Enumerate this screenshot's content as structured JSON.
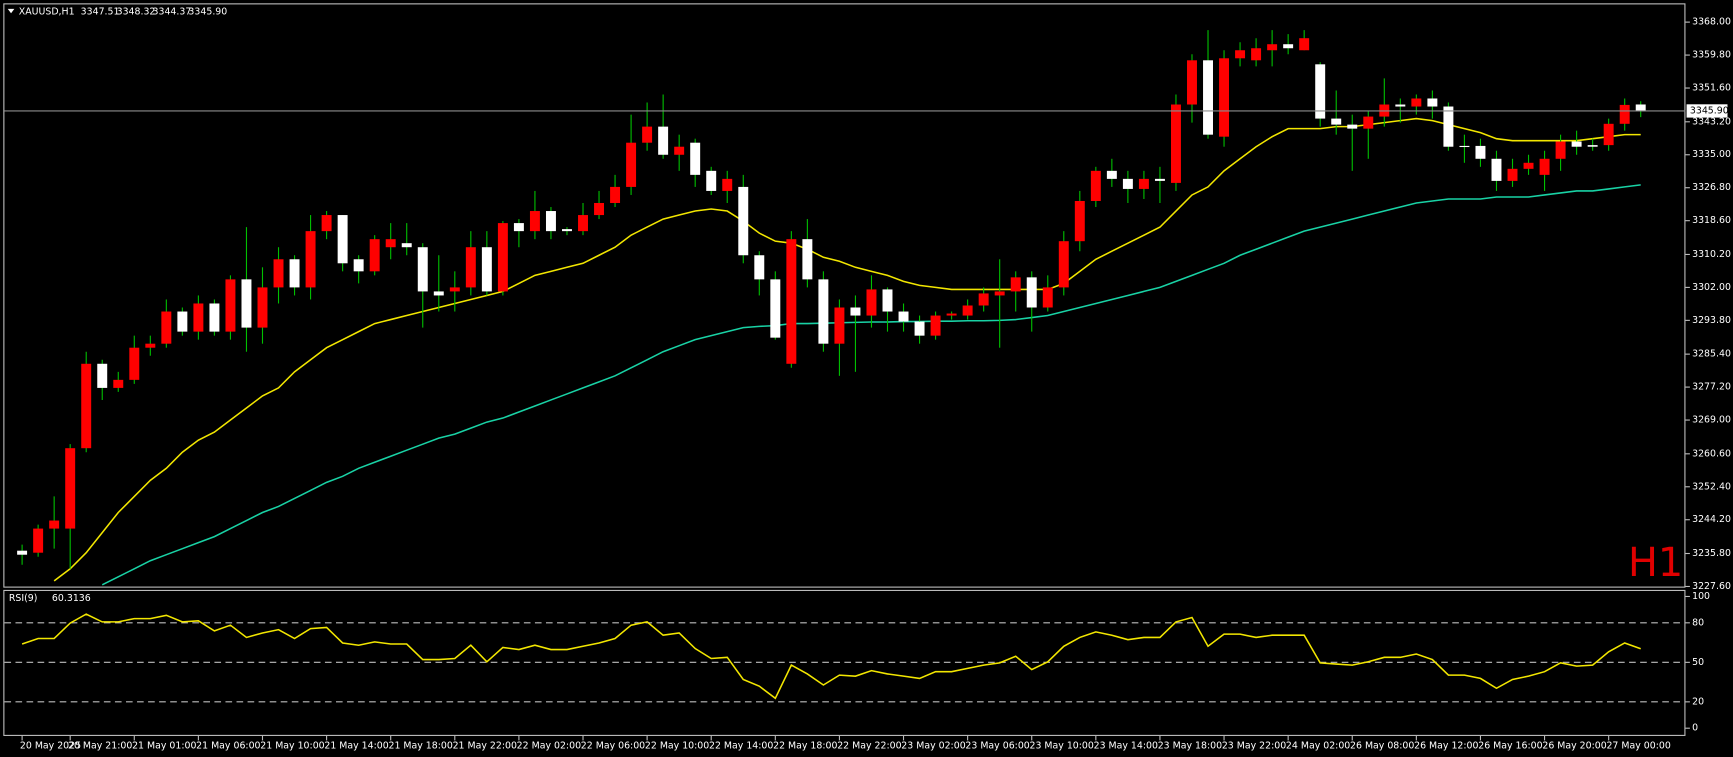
{
  "chart_data": [
    {
      "type": "candlestick",
      "title": "XAUUSD,H1",
      "title_values": [
        "3347.51",
        "3348.32",
        "3344.37",
        "3345.90"
      ],
      "watermark": "H1",
      "categories": [
        "20 May 2025",
        null,
        null,
        "20 May 21:00",
        null,
        null,
        null,
        "21 May 01:00",
        null,
        null,
        null,
        "21 May 06:00",
        null,
        null,
        null,
        "21 May 10:00",
        null,
        null,
        null,
        "21 May 14:00",
        null,
        null,
        null,
        "21 May 18:00",
        null,
        null,
        null,
        "21 May 22:00",
        null,
        null,
        null,
        "22 May 02:00",
        null,
        null,
        null,
        "22 May 06:00",
        null,
        null,
        null,
        "22 May 10:00",
        null,
        null,
        null,
        "22 May 14:00",
        null,
        null,
        null,
        "22 May 18:00",
        null,
        null,
        null,
        "22 May 22:00",
        null,
        null,
        null,
        "23 May 02:00",
        null,
        null,
        null,
        "23 May 06:00",
        null,
        null,
        null,
        "23 May 10:00",
        null,
        null,
        null,
        "23 May 14:00",
        null,
        null,
        null,
        "23 May 18:00",
        null,
        null,
        null,
        "23 May 22:00",
        null,
        null,
        null,
        "24 May 02:00",
        null,
        null,
        null,
        "26 May 08:00",
        null,
        null,
        null,
        "26 May 12:00",
        null,
        null,
        null,
        "26 May 16:00",
        null,
        null,
        null,
        "26 May 20:00",
        null,
        null,
        null,
        "27 May 00:00",
        null,
        null
      ],
      "open": [
        3236.5,
        3236,
        3242,
        3242,
        3262,
        3283,
        3277,
        3279,
        3287,
        3288,
        3296,
        3291,
        3298,
        3291,
        3304,
        3292,
        3302,
        3309,
        3302,
        3316,
        3320,
        3309,
        3306,
        3312,
        3313,
        3312,
        3301,
        3301,
        3302,
        3312,
        3301,
        3318,
        3316,
        3321,
        3316.5,
        3316,
        3320,
        3323,
        3327,
        3338,
        3342,
        3335,
        3338,
        3331,
        3326,
        3327,
        3310,
        3304,
        3283,
        3314,
        3304,
        3288,
        3297,
        3295,
        3301.5,
        3296,
        3293.5,
        3290,
        3295,
        3295,
        3297.5,
        3300,
        3301,
        3304.5,
        3297,
        3302,
        3313.5,
        3323.5,
        3331,
        3329,
        3326.5,
        3329,
        3328,
        3347.5,
        3358.5,
        3339.5,
        3359,
        3358.5,
        3361,
        3362.5,
        3361,
        3357.5,
        3344,
        3342.5,
        3341.5,
        3344.5,
        3347.5,
        3347,
        3349,
        3347,
        3337.2,
        3337.2,
        3334,
        3328.5,
        3331.5,
        3330,
        3334,
        3338.3,
        3337.4,
        3337.4,
        3342.7,
        3347.51
      ],
      "high": [
        3238,
        3243,
        3250,
        3263,
        3286,
        3284,
        3281,
        3290,
        3290,
        3299,
        3297,
        3300,
        3299,
        3305,
        3317,
        3307,
        3312,
        3310,
        3320,
        3321,
        3320,
        3310,
        3315,
        3318,
        3318,
        3313,
        3310,
        3306,
        3316,
        3316,
        3318.5,
        3319,
        3326,
        3322,
        3317,
        3323,
        3326,
        3330,
        3345,
        3348,
        3350,
        3340,
        3339,
        3332,
        3331,
        3330,
        3311,
        3306,
        3316,
        3319,
        3306,
        3299,
        3300,
        3305,
        3302,
        3298,
        3295,
        3296,
        3296,
        3299,
        3302,
        3309,
        3306,
        3306,
        3305,
        3316,
        3326,
        3332,
        3334,
        3331,
        3331,
        3332,
        3350,
        3360,
        3366,
        3361,
        3363,
        3364,
        3366,
        3365,
        3366,
        3358,
        3351,
        3345,
        3346,
        3354,
        3349,
        3350,
        3351,
        3348,
        3340,
        3339,
        3336,
        3334,
        3335,
        3336,
        3340,
        3341,
        3339,
        3344,
        3349,
        3348.32
      ],
      "low": [
        3233,
        3235,
        3237,
        3232,
        3261,
        3274,
        3276,
        3278,
        3285,
        3287,
        3290,
        3289,
        3290,
        3289,
        3286,
        3288,
        3298,
        3300,
        3299,
        3314,
        3306,
        3303,
        3305,
        3309,
        3310,
        3292,
        3296,
        3296,
        3300,
        3300,
        3300,
        3312,
        3314,
        3314,
        3315,
        3315,
        3319,
        3322,
        3325,
        3336,
        3334,
        3331,
        3327,
        3325,
        3323,
        3308,
        3300,
        3289,
        3282,
        3302,
        3286,
        3280,
        3281,
        3292,
        3291,
        3291,
        3288,
        3289,
        3294,
        3294,
        3296,
        3287,
        3296,
        3291,
        3296,
        3300,
        3311,
        3322,
        3327,
        3323,
        3324,
        3323,
        3326,
        3343,
        3339,
        3337,
        3357,
        3357,
        3357,
        3360,
        3361,
        3342,
        3340,
        3331,
        3334,
        3342,
        3343,
        3345,
        3344,
        3336,
        3333,
        3332,
        3326,
        3327,
        3330,
        3326,
        3331,
        3335,
        3336,
        3336,
        3341,
        3344.37
      ],
      "close": [
        3235.5,
        3242,
        3244,
        3262,
        3283,
        3277,
        3279,
        3287,
        3288,
        3296,
        3291,
        3298,
        3291,
        3304,
        3292,
        3302,
        3309,
        3302,
        3316,
        3320,
        3308,
        3306,
        3314,
        3314,
        3312,
        3301,
        3300,
        3302,
        3312,
        3301,
        3318,
        3316,
        3321,
        3316,
        3316,
        3320,
        3323,
        3327,
        3338,
        3342,
        3335,
        3337,
        3330,
        3326,
        3329,
        3310,
        3304,
        3289.5,
        3314,
        3304,
        3288,
        3297,
        3295,
        3301.5,
        3296,
        3293.5,
        3290,
        3295,
        3295.5,
        3297.5,
        3300.5,
        3301,
        3304.5,
        3297,
        3302,
        3313.5,
        3323.5,
        3331,
        3329,
        3326.5,
        3329,
        3328.5,
        3347.5,
        3358.5,
        3340,
        3359,
        3361,
        3361.5,
        3362.5,
        3361.5,
        3364,
        3344,
        3342.5,
        3341.5,
        3344.5,
        3347.5,
        3347,
        3349,
        3347,
        3337,
        3337,
        3334,
        3328.5,
        3331.5,
        3333,
        3334,
        3338.3,
        3337,
        3337,
        3342.7,
        3347.4,
        3345.9
      ],
      "up_color": "#ff0000",
      "down_color": "#ffffff",
      "wick_color": "#00c000",
      "overlays": [
        {
          "color": "#f2e600",
          "values": [
            null,
            null,
            3229,
            3232,
            3236,
            3241,
            3246,
            3250,
            3254,
            3257,
            3261,
            3264,
            3266,
            3269,
            3272,
            3275,
            3277,
            3281,
            3284,
            3287,
            3289,
            3291,
            3293,
            3294,
            3295,
            3296,
            3297,
            3298,
            3299,
            3300,
            3301,
            3303,
            3305,
            3306,
            3307,
            3308,
            3310,
            3312,
            3315,
            3317,
            3319,
            3320,
            3321,
            3321.5,
            3321,
            3318.5,
            3315.5,
            3313.5,
            3313,
            3311.5,
            3309.5,
            3308.5,
            3307,
            3306,
            3305,
            3303.5,
            3302.5,
            3302,
            3301.5,
            3301.5,
            3301.5,
            3301.5,
            3301.5,
            3301.5,
            3301.5,
            3303,
            3306,
            3309,
            3311,
            3313,
            3315,
            3317,
            3321,
            3325,
            3327,
            3331,
            3334,
            3337,
            3339.5,
            3341.5,
            3341.5,
            3341.5,
            3342,
            3342,
            3342.5,
            3343,
            3343.5,
            3344,
            3343.5,
            3342.5,
            3341.5,
            3340.5,
            3339,
            3338.5,
            3338.5,
            3338.5,
            3338.5,
            3338.5,
            3339,
            3339.5,
            3340,
            3340
          ]
        },
        {
          "color": "#19d2a5",
          "values": [
            null,
            null,
            null,
            null,
            null,
            3228,
            3230,
            3232,
            3234,
            3235.5,
            3237,
            3238.5,
            3240,
            3242,
            3244,
            3246,
            3247.5,
            3249.5,
            3251.5,
            3253.5,
            3255,
            3257,
            3258.5,
            3260,
            3261.5,
            3263,
            3264.5,
            3265.5,
            3267,
            3268.5,
            3269.5,
            3271,
            3272.5,
            3274,
            3275.5,
            3277,
            3278.5,
            3280,
            3282,
            3284,
            3286,
            3287.5,
            3289,
            3290,
            3291,
            3292,
            3292.3,
            3292.5,
            3293,
            3293,
            3293.1,
            3293.2,
            3293.3,
            3293.4,
            3293.4,
            3293.5,
            3293.5,
            3293.6,
            3293.6,
            3293.7,
            3293.7,
            3293.8,
            3294,
            3294.5,
            3295,
            3296,
            3297,
            3298,
            3299,
            3300,
            3301,
            3302,
            3303.5,
            3305,
            3306.5,
            3308,
            3310,
            3311.5,
            3313,
            3314.5,
            3316,
            3317,
            3318,
            3319,
            3320,
            3321,
            3322,
            3323,
            3323.5,
            3324,
            3324,
            3324,
            3324.5,
            3324.5,
            3324.5,
            3325,
            3325.5,
            3326,
            3326,
            3326.5,
            3327,
            3327.5
          ]
        }
      ],
      "bid": {
        "value": 3345.9,
        "label": "3345.90"
      },
      "bid_color": "#8c8c8c",
      "ylim": [
        3227.3,
        3372.4
      ],
      "yticks": [
        {
          "value": 3368,
          "label": "3368.00"
        },
        {
          "value": 3359.8,
          "label": "3359.80"
        },
        {
          "value": 3351.6,
          "label": "3351.60"
        },
        {
          "value": 3343.2,
          "label": "3343.20"
        },
        {
          "value": 3335,
          "label": "3335.00"
        },
        {
          "value": 3326.8,
          "label": "3326.80"
        },
        {
          "value": 3318.6,
          "label": "3318.60"
        },
        {
          "value": 3310.2,
          "label": "3310.20"
        },
        {
          "value": 3302,
          "label": "3302.00"
        },
        {
          "value": 3293.8,
          "label": "3293.80"
        },
        {
          "value": 3285.4,
          "label": "3285.40"
        },
        {
          "value": 3277.2,
          "label": "3277.20"
        },
        {
          "value": 3269,
          "label": "3269.00"
        },
        {
          "value": 3260.6,
          "label": "3260.60"
        },
        {
          "value": 3252.4,
          "label": "3252.40"
        },
        {
          "value": 3244.2,
          "label": "3244.20"
        },
        {
          "value": 3235.8,
          "label": "3235.80"
        },
        {
          "value": 3227.6,
          "label": "3227.60"
        }
      ]
    },
    {
      "type": "line",
      "title": "RSI(9)",
      "color": "#f2e600",
      "values": [
        63.9,
        68.1,
        68.1,
        79.8,
        86.6,
        80.7,
        80.7,
        83.2,
        83.2,
        85.7,
        80.7,
        81.5,
        73.9,
        78.2,
        68.9,
        72.3,
        74.8,
        68.1,
        75.6,
        76.5,
        64.7,
        63,
        65.5,
        63.9,
        63.9,
        52.1,
        52.1,
        52.9,
        63,
        50.4,
        61.3,
        59.7,
        63,
        59.7,
        59.7,
        62.2,
        64.7,
        68.1,
        78.2,
        80.7,
        70.6,
        72.3,
        60.5,
        52.9,
        53.8,
        37,
        31.9,
        22.7,
        47.9,
        41.2,
        32.8,
        40.3,
        39.5,
        43.7,
        41.2,
        39.5,
        37.8,
        42.9,
        42.9,
        45.4,
        47.9,
        49.6,
        54.6,
        44.5,
        50.4,
        62.2,
        68.9,
        73.1,
        70.6,
        67.2,
        68.9,
        68.9,
        80.7,
        84,
        62.2,
        71.4,
        71.4,
        68.9,
        70.6,
        70.6,
        70.6,
        49.6,
        48.7,
        47.9,
        50.4,
        53.8,
        53.8,
        56.3,
        52.1,
        40.3,
        40.3,
        37.8,
        30.3,
        37,
        39.5,
        42.9,
        49.6,
        47.1,
        47.9,
        58,
        64.7,
        60.3136
      ],
      "ylim": [
        -5.9,
        105
      ],
      "yticks": [
        100,
        80,
        50,
        20,
        0
      ],
      "levels": [
        80,
        50,
        20
      ]
    }
  ]
}
